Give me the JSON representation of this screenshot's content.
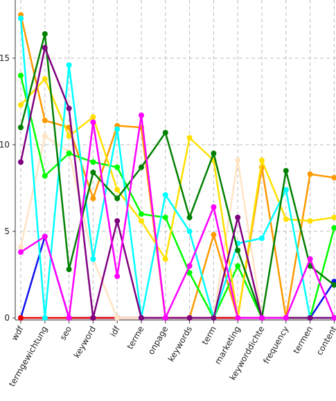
{
  "chart_data": {
    "type": "line",
    "categories": [
      "wdf",
      "termgewichtung",
      "seo",
      "keyword",
      "idf",
      "terme",
      "onpage",
      "keywords",
      "term",
      "marketing",
      "keyworddichte",
      "frequency",
      "termen",
      "content"
    ],
    "y_ticks": [
      "0",
      "5",
      "10",
      "15"
    ],
    "ylim": [
      0,
      17.7
    ],
    "grid": true,
    "series": [
      {
        "color": "#1010ee",
        "values": [
          0,
          4.7,
          0,
          0,
          0,
          0,
          0,
          0,
          0,
          0,
          0,
          0,
          0,
          2.1
        ]
      },
      {
        "color": "#ee0000",
        "values": [
          0,
          0,
          0,
          0,
          0,
          0,
          0,
          0,
          0,
          0,
          0,
          0,
          0,
          0
        ]
      },
      {
        "color": "#ffe4c4",
        "values": [
          4.1,
          10.5,
          9.6,
          3.4,
          0,
          0,
          0,
          0,
          0,
          9.1,
          0,
          0,
          0,
          0
        ]
      },
      {
        "color": "#ff9900",
        "values": [
          17.5,
          11.4,
          11.0,
          6.9,
          11.1,
          11.0,
          0,
          0,
          4.8,
          0,
          8.7,
          0,
          8.3,
          8.1
        ]
      },
      {
        "color": "#00ff00",
        "values": [
          14.0,
          8.2,
          9.5,
          9.0,
          8.7,
          6.0,
          5.8,
          2.6,
          0,
          3.0,
          0,
          0,
          0,
          5.2
        ]
      },
      {
        "color": "#ffe000",
        "values": [
          12.3,
          13.8,
          10.5,
          11.6,
          7.4,
          5.6,
          3.4,
          10.4,
          9.1,
          0,
          9.1,
          5.7,
          5.6,
          5.8
        ]
      },
      {
        "color": "#00ffff",
        "values": [
          17.3,
          0,
          14.6,
          3.4,
          10.9,
          0,
          7.1,
          5.0,
          0,
          4.3,
          4.6,
          7.4,
          0,
          0
        ]
      },
      {
        "color": "#008000",
        "values": [
          11.0,
          16.4,
          2.8,
          8.4,
          6.9,
          8.7,
          10.7,
          5.8,
          9.5,
          3.9,
          0,
          8.5,
          3.0,
          1.9
        ]
      },
      {
        "color": "#800080",
        "values": [
          9.0,
          15.6,
          12.1,
          0,
          5.6,
          0,
          0,
          0,
          0,
          5.8,
          0,
          0,
          0,
          0
        ]
      },
      {
        "color": "#ff00ff",
        "values": [
          3.8,
          4.7,
          0,
          11.3,
          2.4,
          11.7,
          0,
          3.0,
          6.4,
          0,
          0,
          0,
          3.4,
          0
        ]
      }
    ]
  }
}
